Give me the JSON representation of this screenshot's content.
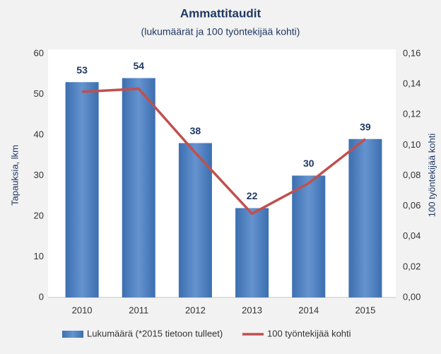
{
  "chart_data": {
    "type": "bar_line",
    "title": "Ammattitaudit",
    "subtitle": "(lukumäärät ja 100 työntekijää kohti)",
    "ylabel": "Tapauksia, lkm",
    "y2label": "100 työntekijää kohti",
    "categories": [
      "2010",
      "2011",
      "2012",
      "2013",
      "2014",
      "2015"
    ],
    "series": [
      {
        "name": "Lukumäärä (*2015 tietoon tulleet)",
        "color": "#4a7ebb",
        "type": "bar",
        "values": [
          53,
          54,
          38,
          22,
          30,
          39
        ]
      },
      {
        "name": "100 työntekijää kohti",
        "color": "#c0504d",
        "type": "line",
        "axis": "y2",
        "values": [
          0.135,
          0.137,
          0.095,
          0.055,
          0.075,
          0.104
        ]
      }
    ],
    "ylim": [
      0,
      60
    ],
    "yticks": [
      0,
      10,
      20,
      30,
      40,
      50,
      60
    ],
    "y2lim": [
      0,
      0.16
    ],
    "y2ticks": [
      {
        "value": 0,
        "label": "0,00"
      },
      {
        "value": 0.02,
        "label": "0,02"
      },
      {
        "value": 0.04,
        "label": "0,04"
      },
      {
        "value": 0.06,
        "label": "0,06"
      },
      {
        "value": 0.08,
        "label": "0,08"
      },
      {
        "value": 0.1,
        "label": "0,10"
      },
      {
        "value": 0.12,
        "label": "0,12"
      },
      {
        "value": 0.14,
        "label": "0,14"
      },
      {
        "value": 0.16,
        "label": "0,16"
      }
    ],
    "grid": false,
    "legend": "bottom"
  }
}
